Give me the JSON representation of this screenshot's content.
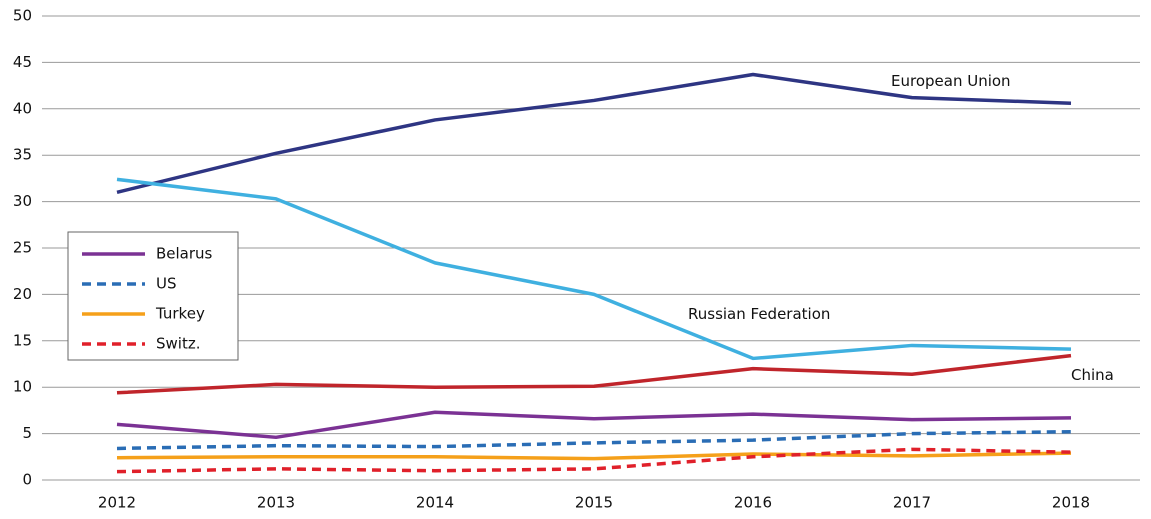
{
  "chart_data": {
    "type": "line",
    "categories": [
      "2012",
      "2013",
      "2014",
      "2015",
      "2016",
      "2017",
      "2018"
    ],
    "series": [
      {
        "name": "European Union",
        "color": "#2e3583",
        "dash": false,
        "labeled": "line",
        "values": [
          31.0,
          35.2,
          38.8,
          40.9,
          43.7,
          41.2,
          40.6
        ]
      },
      {
        "name": "Russian Federation",
        "color": "#3fb0e0",
        "dash": false,
        "labeled": "line",
        "values": [
          32.4,
          30.3,
          23.4,
          20.0,
          13.1,
          14.5,
          14.1
        ]
      },
      {
        "name": "China",
        "color": "#c0252b",
        "dash": false,
        "labeled": "line",
        "values": [
          9.4,
          10.3,
          10.0,
          10.1,
          12.0,
          11.4,
          13.4
        ]
      },
      {
        "name": "Belarus",
        "color": "#7b3294",
        "dash": false,
        "labeled": "legend",
        "values": [
          6.0,
          4.6,
          7.3,
          6.6,
          7.1,
          6.5,
          6.7
        ]
      },
      {
        "name": "US",
        "color": "#2a6db5",
        "dash": true,
        "labeled": "legend",
        "values": [
          3.4,
          3.7,
          3.6,
          4.0,
          4.3,
          5.0,
          5.2
        ]
      },
      {
        "name": "Turkey",
        "color": "#f5a01a",
        "dash": false,
        "labeled": "legend",
        "values": [
          2.4,
          2.5,
          2.5,
          2.3,
          2.8,
          2.6,
          2.9
        ]
      },
      {
        "name": "Switz.",
        "color": "#e0202a",
        "dash": true,
        "labeled": "legend",
        "values": [
          0.9,
          1.2,
          1.0,
          1.2,
          2.5,
          3.3,
          3.0
        ]
      }
    ],
    "ylim": [
      0,
      50
    ],
    "yticks": [
      0,
      5,
      10,
      15,
      20,
      25,
      30,
      35,
      40,
      45,
      50
    ],
    "grid": true
  }
}
